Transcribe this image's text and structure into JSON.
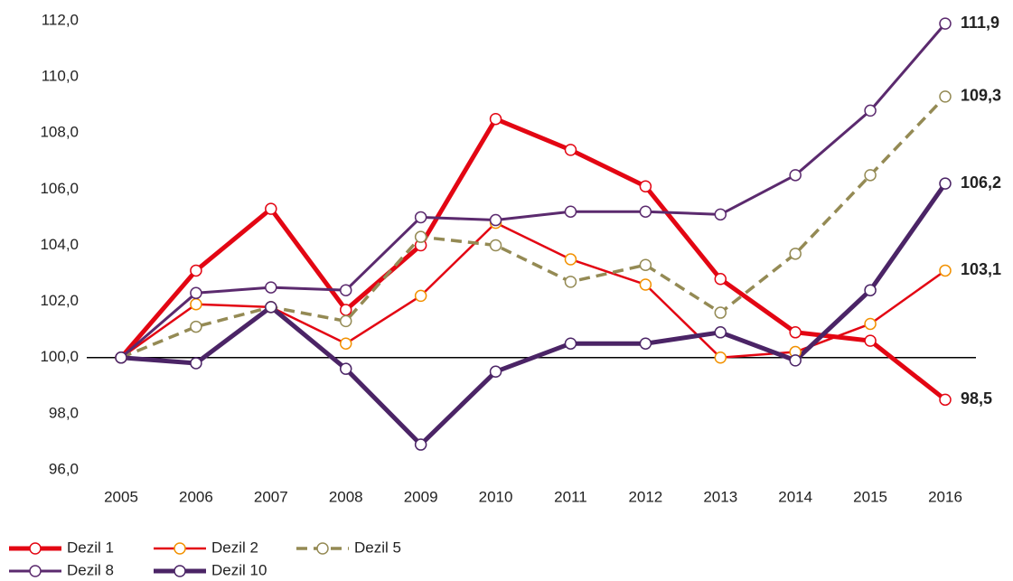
{
  "chart_data": {
    "type": "line",
    "categories": [
      "2005",
      "2006",
      "2007",
      "2008",
      "2009",
      "2010",
      "2011",
      "2012",
      "2013",
      "2014",
      "2015",
      "2016"
    ],
    "ylim": [
      96,
      112
    ],
    "yticks": [
      {
        "value": 96,
        "label": "96,0"
      },
      {
        "value": 98,
        "label": "98,0"
      },
      {
        "value": 100,
        "label": "100,0"
      },
      {
        "value": 102,
        "label": "102,0"
      },
      {
        "value": 104,
        "label": "104,0"
      },
      {
        "value": 106,
        "label": "106,0"
      },
      {
        "value": 108,
        "label": "108,0"
      },
      {
        "value": 110,
        "label": "110,0"
      },
      {
        "value": 112,
        "label": "112,0"
      }
    ],
    "reference_line": 100,
    "series": [
      {
        "name": "Dezil 1",
        "color": "#e30613",
        "marker_color": "#e30613",
        "label_color": "#e30613",
        "width": 5,
        "dashed": false,
        "values": [
          100,
          103.1,
          105.3,
          101.7,
          104.0,
          108.5,
          107.4,
          106.1,
          102.8,
          100.9,
          100.6,
          98.5
        ],
        "value_labels": [
          null,
          null,
          null,
          null,
          null,
          null,
          null,
          null,
          null,
          null,
          null,
          "98,5"
        ]
      },
      {
        "name": "Dezil 2",
        "color": "#e30613",
        "marker_color": "#f29100",
        "label_color": "#e30613",
        "width": 2.5,
        "dashed": false,
        "values": [
          100,
          101.9,
          101.8,
          100.5,
          102.2,
          104.8,
          103.5,
          102.6,
          100.0,
          100.2,
          101.2,
          103.1
        ],
        "value_labels": [
          null,
          null,
          null,
          null,
          null,
          null,
          null,
          null,
          null,
          null,
          null,
          "103,1"
        ]
      },
      {
        "name": "Dezil 5",
        "color": "#948a54",
        "marker_color": "#948a54",
        "label_color": "#948a54",
        "width": 3.5,
        "dashed": true,
        "values": [
          100,
          101.1,
          101.8,
          101.3,
          104.3,
          104.0,
          102.7,
          103.3,
          101.6,
          103.7,
          106.5,
          109.3
        ],
        "value_labels": [
          null,
          null,
          null,
          null,
          null,
          null,
          null,
          null,
          null,
          null,
          null,
          "109,3"
        ]
      },
      {
        "name": "Dezil 8",
        "color": "#5b2a6e",
        "marker_color": "#5b2a6e",
        "label_color": "#7b3f98",
        "width": 3,
        "dashed": false,
        "values": [
          100,
          102.3,
          102.5,
          102.4,
          105.0,
          104.9,
          105.2,
          105.2,
          105.1,
          106.5,
          108.8,
          111.9
        ],
        "value_labels": [
          null,
          null,
          null,
          null,
          null,
          null,
          null,
          null,
          null,
          null,
          null,
          "111,9"
        ]
      },
      {
        "name": "Dezil 10",
        "color": "#4b2466",
        "marker_color": "#4b2466",
        "label_color": "#7a1048",
        "width": 5,
        "dashed": false,
        "values": [
          100,
          99.8,
          101.8,
          99.6,
          96.9,
          99.5,
          100.5,
          100.5,
          100.9,
          99.9,
          102.4,
          106.2
        ],
        "value_labels": [
          null,
          null,
          null,
          null,
          null,
          null,
          null,
          null,
          null,
          null,
          null,
          "106,2"
        ]
      }
    ]
  }
}
